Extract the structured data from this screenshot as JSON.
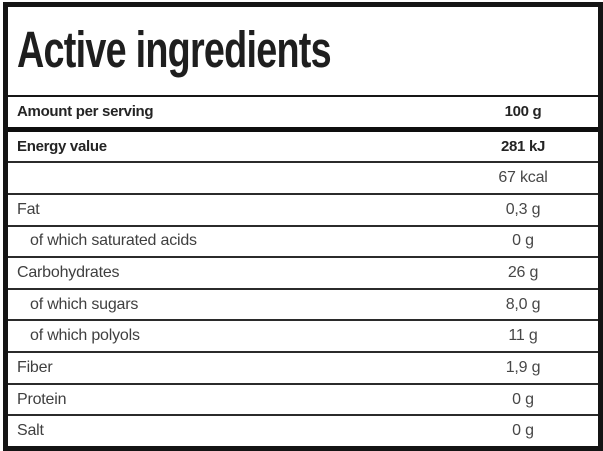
{
  "title": "Active ingredients",
  "table": {
    "rows": [
      {
        "label": "Amount per serving",
        "value": "100 g"
      },
      {
        "label": "Energy value",
        "value": "281 kJ"
      },
      {
        "label": "",
        "value": "67 kcal"
      },
      {
        "label": "Fat",
        "value": "0,3 g"
      },
      {
        "label": "of which saturated acids",
        "value": "0 g"
      },
      {
        "label": "Carbohydrates",
        "value": "26 g"
      },
      {
        "label": "of which sugars",
        "value": "8,0 g"
      },
      {
        "label": "of which polyols",
        "value": "11 g"
      },
      {
        "label": "Fiber",
        "value": "1,9 g"
      },
      {
        "label": "Protein",
        "value": "0 g"
      },
      {
        "label": "Salt",
        "value": "0 g"
      }
    ]
  },
  "colors": {
    "border": "#141414",
    "separator": "#2b2b2b",
    "title_text": "#1e1e1e",
    "bold_text": "#242424",
    "regular_text": "#3f3f3f",
    "background": "#ffffff"
  }
}
